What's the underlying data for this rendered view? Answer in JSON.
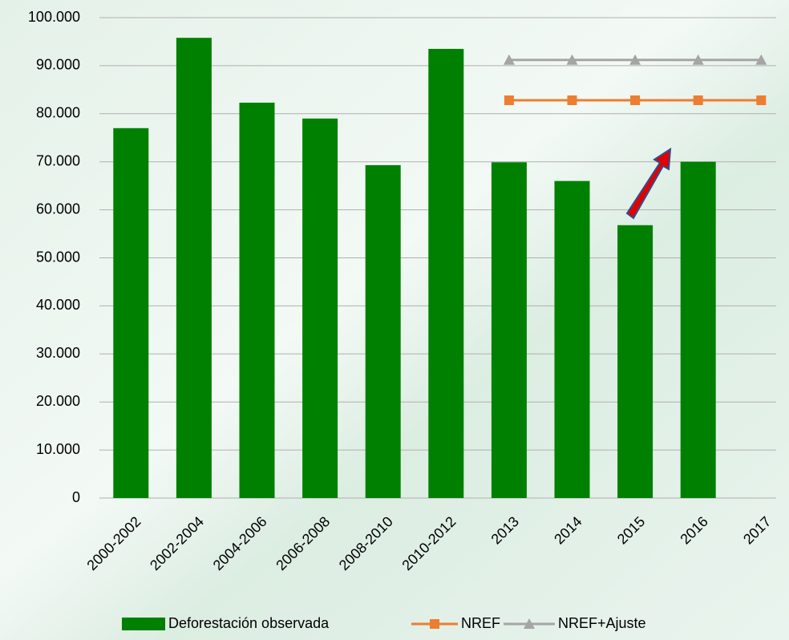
{
  "chart_data": {
    "type": "bar",
    "categories": [
      "2000-2002",
      "2002-2004",
      "2004-2006",
      "2006-2008",
      "2008-2010",
      "2010-2012",
      "2013",
      "2014",
      "2015",
      "2016",
      "2017"
    ],
    "series": [
      {
        "name": "Deforestación observada",
        "type": "bar",
        "color": "#008000",
        "values": [
          77000,
          95800,
          82300,
          79000,
          69300,
          93500,
          69900,
          66000,
          56800,
          70000,
          null
        ]
      },
      {
        "name": "NREF",
        "type": "line",
        "marker": "square",
        "color": "#ed7d31",
        "values": [
          null,
          null,
          null,
          null,
          null,
          null,
          82800,
          82800,
          82800,
          82800,
          82800
        ]
      },
      {
        "name": "NREF+Ajuste",
        "type": "line",
        "marker": "triangle",
        "color": "#a5a5a5",
        "values": [
          null,
          null,
          null,
          null,
          null,
          null,
          91200,
          91200,
          91200,
          91200,
          91200
        ]
      }
    ],
    "ylim": [
      0,
      100000
    ],
    "yticks": [
      0,
      {
        "value": 10000,
        "label": "10.000"
      },
      {
        "value": 20000,
        "label": "20.000"
      },
      {
        "value": 30000,
        "label": "30.000"
      },
      {
        "value": 40000,
        "label": "40.000"
      },
      {
        "value": 50000,
        "label": "50.000"
      },
      {
        "value": 60000,
        "label": "60.000"
      },
      {
        "value": 70000,
        "label": "70.000"
      },
      {
        "value": 80000,
        "label": "80.000"
      },
      {
        "value": 90000,
        "label": "90.000"
      },
      {
        "value": 100000,
        "label": "100.000"
      }
    ],
    "grid": true,
    "legend": "bottom"
  }
}
